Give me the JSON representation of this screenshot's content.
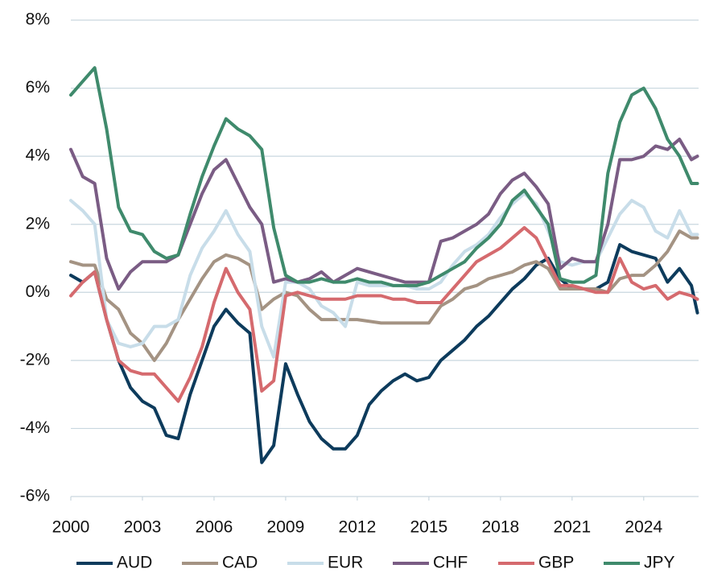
{
  "chart_data": {
    "type": "line",
    "x": [
      2000,
      2000.5,
      2001,
      2001.5,
      2002,
      2002.5,
      2003,
      2003.5,
      2004,
      2004.5,
      2005,
      2005.5,
      2006,
      2006.5,
      2007,
      2007.5,
      2008,
      2008.5,
      2009,
      2009.5,
      2010,
      2010.5,
      2011,
      2011.5,
      2012,
      2012.5,
      2013,
      2013.5,
      2014,
      2014.5,
      2015,
      2015.5,
      2016,
      2016.5,
      2017,
      2017.5,
      2018,
      2018.5,
      2019,
      2019.5,
      2020,
      2020.5,
      2021,
      2021.5,
      2022,
      2022.5,
      2023,
      2023.5,
      2024,
      2024.5,
      2025,
      2025.5,
      2026,
      2026.25
    ],
    "series": [
      {
        "name": "AUD",
        "color": "#0d3b5c",
        "values": [
          0.5,
          0.3,
          0.6,
          -0.8,
          -2.0,
          -2.8,
          -3.2,
          -3.4,
          -4.2,
          -4.3,
          -3.0,
          -2.0,
          -1.0,
          -0.5,
          -0.9,
          -1.2,
          -5.0,
          -4.5,
          -2.1,
          -3.0,
          -3.8,
          -4.3,
          -4.6,
          -4.6,
          -4.2,
          -3.3,
          -2.9,
          -2.6,
          -2.4,
          -2.6,
          -2.5,
          -2.0,
          -1.7,
          -1.4,
          -1.0,
          -0.7,
          -0.3,
          0.1,
          0.4,
          0.8,
          1.0,
          0.4,
          0.1,
          0.1,
          0.1,
          0.3,
          1.4,
          1.2,
          1.1,
          1.0,
          0.3,
          0.7,
          0.2,
          -0.6
        ]
      },
      {
        "name": "CAD",
        "color": "#a49383",
        "values": [
          0.9,
          0.8,
          0.8,
          -0.2,
          -0.5,
          -1.2,
          -1.5,
          -2.0,
          -1.5,
          -0.8,
          -0.2,
          0.4,
          0.9,
          1.1,
          1.0,
          0.8,
          -0.5,
          -0.2,
          0.0,
          -0.1,
          -0.5,
          -0.8,
          -0.8,
          -0.8,
          -0.8,
          -0.85,
          -0.9,
          -0.9,
          -0.9,
          -0.9,
          -0.9,
          -0.4,
          -0.2,
          0.1,
          0.2,
          0.4,
          0.5,
          0.6,
          0.8,
          0.9,
          0.7,
          0.1,
          0.1,
          0.1,
          0.1,
          0.0,
          0.4,
          0.5,
          0.5,
          0.8,
          1.2,
          1.8,
          1.6,
          1.6
        ]
      },
      {
        "name": "EUR",
        "color": "#c8dde9",
        "values": [
          2.7,
          2.4,
          2.0,
          -0.8,
          -1.5,
          -1.6,
          -1.5,
          -1.0,
          -1.0,
          -0.8,
          0.5,
          1.3,
          1.8,
          2.4,
          1.7,
          1.2,
          -1.0,
          -1.9,
          0.3,
          0.3,
          0.1,
          -0.4,
          -0.6,
          -1.0,
          0.3,
          0.2,
          0.2,
          0.2,
          0.2,
          0.1,
          0.1,
          0.3,
          0.8,
          1.2,
          1.4,
          1.7,
          2.2,
          2.6,
          2.9,
          2.6,
          1.8,
          0.9,
          0.8,
          0.9,
          0.9,
          1.6,
          2.3,
          2.7,
          2.5,
          1.8,
          1.6,
          2.4,
          1.7,
          1.7
        ]
      },
      {
        "name": "CHF",
        "color": "#7a5c84",
        "values": [
          4.2,
          3.4,
          3.2,
          1.0,
          0.1,
          0.6,
          0.9,
          0.9,
          0.9,
          1.1,
          2.0,
          2.9,
          3.6,
          3.9,
          3.2,
          2.5,
          2.0,
          0.3,
          0.4,
          0.3,
          0.4,
          0.6,
          0.3,
          0.5,
          0.7,
          0.6,
          0.5,
          0.4,
          0.3,
          0.3,
          0.3,
          1.5,
          1.6,
          1.8,
          2.0,
          2.3,
          2.9,
          3.3,
          3.5,
          3.1,
          2.6,
          0.7,
          1.0,
          0.9,
          0.9,
          2.0,
          3.9,
          3.9,
          4.0,
          4.3,
          4.2,
          4.5,
          3.9,
          4.0
        ]
      },
      {
        "name": "GBP",
        "color": "#d56a6e",
        "values": [
          -0.1,
          0.3,
          0.6,
          -0.8,
          -2.0,
          -2.3,
          -2.4,
          -2.4,
          -2.8,
          -3.2,
          -2.5,
          -1.6,
          -0.3,
          0.7,
          0.0,
          -0.5,
          -2.9,
          -2.6,
          -0.1,
          0.0,
          -0.1,
          -0.2,
          -0.2,
          -0.2,
          -0.1,
          -0.1,
          -0.1,
          -0.2,
          -0.2,
          -0.3,
          -0.3,
          -0.3,
          0.1,
          0.5,
          0.9,
          1.1,
          1.3,
          1.6,
          1.9,
          1.6,
          0.9,
          0.2,
          0.2,
          0.1,
          0.0,
          0.0,
          1.0,
          0.3,
          0.1,
          0.2,
          -0.2,
          0.0,
          -0.1,
          -0.2
        ]
      },
      {
        "name": "JPY",
        "color": "#3f8a6c",
        "values": [
          5.8,
          6.2,
          6.6,
          4.8,
          2.5,
          1.8,
          1.7,
          1.2,
          1.0,
          1.1,
          2.3,
          3.4,
          4.3,
          5.1,
          4.8,
          4.6,
          4.2,
          1.9,
          0.5,
          0.3,
          0.3,
          0.4,
          0.3,
          0.3,
          0.4,
          0.3,
          0.3,
          0.2,
          0.2,
          0.2,
          0.3,
          0.5,
          0.7,
          0.9,
          1.3,
          1.6,
          2.0,
          2.7,
          3.0,
          2.5,
          2.0,
          0.4,
          0.3,
          0.3,
          0.5,
          3.5,
          5.0,
          5.8,
          6.0,
          5.4,
          4.5,
          4.0,
          3.2,
          3.2
        ]
      }
    ],
    "xlim": [
      2000,
      2026.3
    ],
    "xticks": [
      2000,
      2003,
      2006,
      2009,
      2012,
      2015,
      2018,
      2021,
      2024
    ],
    "ylim": [
      -6,
      8
    ],
    "yticks": [
      {
        "value": -6,
        "label": "-6%"
      },
      {
        "value": -4,
        "label": "-4%"
      },
      {
        "value": -2,
        "label": "-2%"
      },
      {
        "value": 0,
        "label": "0%"
      },
      {
        "value": 2,
        "label": "2%"
      },
      {
        "value": 4,
        "label": "4%"
      },
      {
        "value": 6,
        "label": "6%"
      },
      {
        "value": 8,
        "label": "8%"
      }
    ],
    "grid": true,
    "legend": "bottom"
  }
}
